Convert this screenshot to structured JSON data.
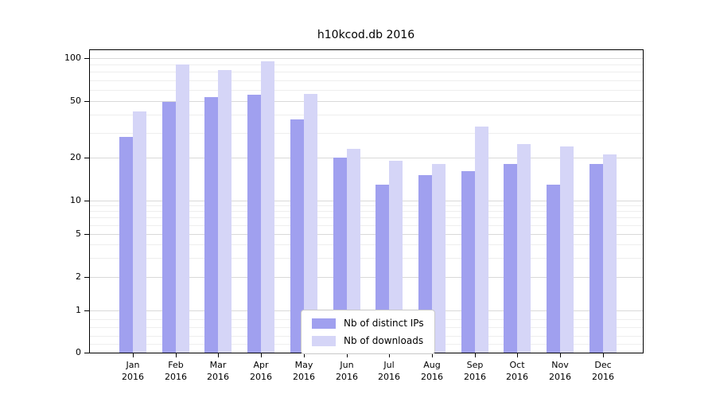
{
  "title": "h10kcod.db 2016",
  "chart_data": {
    "type": "bar",
    "title": "h10kcod.db 2016",
    "scale": "symlog",
    "grid": true,
    "legend_position": "lower center",
    "categories": [
      "Jan 2016",
      "Feb 2016",
      "Mar 2016",
      "Apr 2016",
      "May 2016",
      "Jun 2016",
      "Jul 2016",
      "Aug 2016",
      "Sep 2016",
      "Oct 2016",
      "Nov 2016",
      "Dec 2016"
    ],
    "series": [
      {
        "name": "Nb of distinct IPs",
        "color": "#a0a0ef",
        "values": [
          28,
          49,
          53,
          55,
          37,
          20,
          13,
          15,
          16,
          18,
          13,
          18
        ]
      },
      {
        "name": "Nb of downloads",
        "color": "#d5d5f7",
        "values": [
          42,
          90,
          82,
          95,
          56,
          23,
          19,
          18,
          33,
          25,
          24,
          21
        ]
      }
    ],
    "y_ticks": [
      0,
      1,
      2,
      5,
      10,
      20,
      50,
      100
    ],
    "y_minor_ticks": [
      0.2,
      0.4,
      0.6,
      0.8,
      3,
      4,
      6,
      7,
      8,
      9,
      30,
      40,
      60,
      70,
      80,
      90
    ],
    "ylim": [
      0,
      115
    ],
    "xlabel": "",
    "ylabel": ""
  }
}
